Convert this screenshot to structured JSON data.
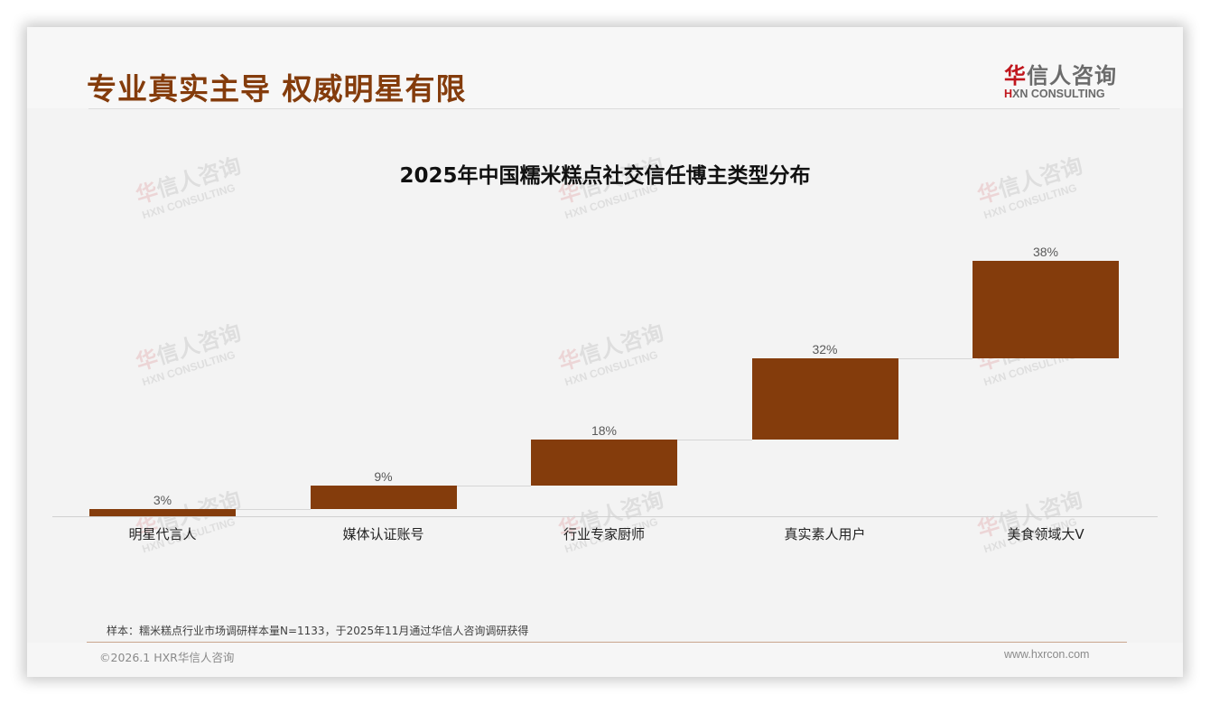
{
  "header": {
    "title": "专业真实主导 权威明星有限",
    "logo_cn_first": "华",
    "logo_cn_rest": "信人咨询",
    "logo_en_first": "H",
    "logo_en_rest": "XN CONSULTING"
  },
  "watermark": {
    "cn_first": "华",
    "cn_rest": "信人咨询",
    "en": "HXN CONSULTING"
  },
  "chart_data": {
    "type": "bar",
    "subtype": "waterfall",
    "title": "2025年中国糯米糕点社交信任博主类型分布",
    "categories": [
      "明星代言人",
      "媒体认证账号",
      "行业专家厨师",
      "真实素人用户",
      "美食领域大V"
    ],
    "values": [
      3,
      9,
      18,
      32,
      38
    ],
    "value_labels": [
      "3%",
      "9%",
      "18%",
      "32%",
      "38%"
    ],
    "units": "%",
    "xlabel": "",
    "ylabel": "",
    "ylim": [
      0,
      100
    ],
    "grid": false,
    "legend": "none",
    "bar_color": "#843c0c"
  },
  "footer": {
    "note": "样本：糯米糕点行业市场调研样本量N=1133，于2025年11月通过华信人咨询调研获得",
    "copyright": "©2026.1 HXR华信人咨询",
    "website": "www.hxrcon.com"
  }
}
